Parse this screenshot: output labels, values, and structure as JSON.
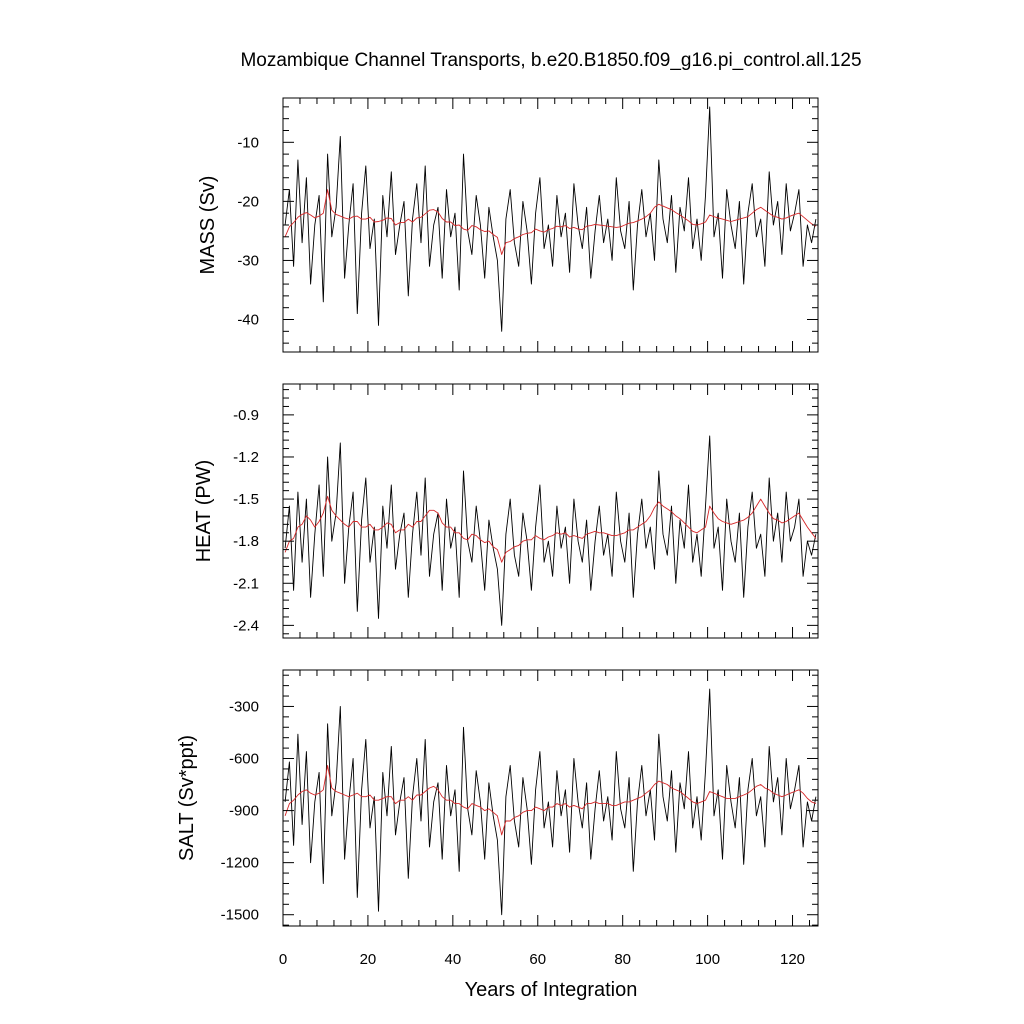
{
  "title": "Mozambique Channel Transports, b.e20.B1850.f09_g16.pi_control.all.125",
  "xlabel": "Years of Integration",
  "x_ticks": [
    "0",
    "20",
    "40",
    "60",
    "80",
    "100",
    "120"
  ],
  "colors": {
    "raw": "#000000",
    "smooth": "#d62728",
    "axes": "#000000"
  },
  "chart_data": [
    {
      "type": "line",
      "ylabel": "MASS (Sv)",
      "xlim": [
        0,
        126
      ],
      "ylim": [
        -45.5,
        -2.5
      ],
      "y_ticks": [
        -10,
        -20,
        -30,
        -40
      ],
      "y_tick_labels": [
        "-10",
        "-20",
        "-30",
        "-40"
      ],
      "series": [
        {
          "values": [
            -24,
            -18,
            -31,
            -13,
            -27,
            -16,
            -34,
            -24,
            -19,
            -37,
            -12,
            -26,
            -21,
            -9,
            -33,
            -24,
            -17,
            -39,
            -22,
            -14,
            -28,
            -23,
            -41,
            -19,
            -26,
            -15,
            -29,
            -24,
            -20,
            -36,
            -23,
            -17,
            -27,
            -14,
            -31,
            -24,
            -21,
            -33,
            -18,
            -26,
            -22,
            -35,
            -12,
            -25,
            -29,
            -19,
            -24,
            -33,
            -21,
            -26,
            -30,
            -42,
            -23,
            -18,
            -27,
            -31,
            -20,
            -25,
            -34,
            -22,
            -16,
            -28,
            -24,
            -31,
            -19,
            -26,
            -22,
            -32,
            -17,
            -24,
            -28,
            -21,
            -33,
            -25,
            -19,
            -27,
            -23,
            -30,
            -16,
            -25,
            -28,
            -20,
            -35,
            -24,
            -18,
            -26,
            -22,
            -30,
            -13,
            -23,
            -27,
            -19,
            -32,
            -21,
            -25,
            -16,
            -28,
            -23,
            -30,
            -19,
            -4,
            -26,
            -22,
            -33,
            -18,
            -24,
            -28,
            -20,
            -34,
            -22,
            -17,
            -26,
            -23,
            -31,
            -15,
            -24,
            -20,
            -29,
            -17,
            -25,
            -22,
            -18,
            -31,
            -24,
            -27,
            -23
          ]
        },
        {
          "values": [
            -26.0,
            -24.3,
            -23.6,
            -22.7,
            -22.2,
            -21.9,
            -22.3,
            -22.8,
            -22.5,
            -22.0,
            -18.0,
            -21.5,
            -22.2,
            -22.5,
            -22.8,
            -23.0,
            -22.6,
            -22.5,
            -23.0,
            -23.0,
            -22.7,
            -23.5,
            -23.4,
            -23.2,
            -22.8,
            -22.9,
            -24.0,
            -23.6,
            -23.6,
            -23.0,
            -23.5,
            -22.8,
            -22.7,
            -22.1,
            -21.5,
            -21.4,
            -21.8,
            -22.9,
            -23.5,
            -23.5,
            -24.1,
            -24.0,
            -24.7,
            -24.9,
            -24.1,
            -24.3,
            -24.8,
            -25.1,
            -25.0,
            -25.6,
            -26.1,
            -29.0,
            -27.0,
            -26.8,
            -26.3,
            -26.0,
            -25.6,
            -25.4,
            -25.3,
            -24.7,
            -25.0,
            -25.2,
            -24.8,
            -24.6,
            -24.2,
            -24.3,
            -24.1,
            -24.6,
            -24.4,
            -24.7,
            -24.8,
            -24.2,
            -24.1,
            -23.9,
            -24.0,
            -24.1,
            -24.2,
            -24.3,
            -24.4,
            -24.3,
            -24.0,
            -23.7,
            -23.6,
            -23.3,
            -23.0,
            -22.6,
            -22.0,
            -21.0,
            -20.5,
            -20.8,
            -21.1,
            -21.4,
            -21.9,
            -22.3,
            -22.8,
            -23.3,
            -23.9,
            -24.0,
            -23.8,
            -23.5,
            -22.3,
            -22.6,
            -22.8,
            -23.0,
            -23.2,
            -23.4,
            -23.2,
            -23.0,
            -22.8,
            -22.6,
            -22.0,
            -21.4,
            -21.0,
            -21.5,
            -22.0,
            -22.5,
            -22.7,
            -23.0,
            -22.8,
            -22.5,
            -22.2,
            -22.0,
            -22.6,
            -23.2,
            -23.8,
            -24.2
          ]
        }
      ]
    },
    {
      "type": "line",
      "ylabel": "HEAT (PW)",
      "xlim": [
        0,
        126
      ],
      "ylim": [
        -2.49,
        -0.68
      ],
      "y_ticks": [
        -0.9,
        -1.2,
        -1.5,
        -1.8,
        -2.1,
        -2.4
      ],
      "y_tick_labels": [
        "-0.9",
        "-1.2",
        "-1.5",
        "-1.8",
        "-2.1",
        "-2.4"
      ],
      "series": [
        {
          "values": [
            -1.85,
            -1.55,
            -2.15,
            -1.45,
            -1.95,
            -1.5,
            -2.2,
            -1.75,
            -1.4,
            -2.05,
            -1.2,
            -1.8,
            -1.6,
            -1.1,
            -2.1,
            -1.7,
            -1.45,
            -2.3,
            -1.65,
            -1.35,
            -1.95,
            -1.7,
            -2.35,
            -1.55,
            -1.85,
            -1.4,
            -2.0,
            -1.75,
            -1.6,
            -2.2,
            -1.75,
            -1.45,
            -1.9,
            -1.35,
            -2.05,
            -1.75,
            -1.6,
            -2.15,
            -1.5,
            -1.85,
            -1.7,
            -2.2,
            -1.3,
            -1.8,
            -1.95,
            -1.55,
            -1.8,
            -2.15,
            -1.65,
            -1.85,
            -2.0,
            -2.4,
            -1.75,
            -1.5,
            -1.9,
            -2.05,
            -1.6,
            -1.8,
            -2.15,
            -1.7,
            -1.4,
            -1.95,
            -1.8,
            -2.05,
            -1.55,
            -1.85,
            -1.7,
            -2.1,
            -1.5,
            -1.8,
            -1.95,
            -1.65,
            -2.15,
            -1.8,
            -1.55,
            -1.9,
            -1.75,
            -2.05,
            -1.45,
            -1.8,
            -1.95,
            -1.6,
            -2.2,
            -1.75,
            -1.5,
            -1.85,
            -1.7,
            -2.0,
            -1.3,
            -1.75,
            -1.9,
            -1.55,
            -2.1,
            -1.65,
            -1.85,
            -1.4,
            -1.95,
            -1.75,
            -2.05,
            -1.55,
            -1.05,
            -1.85,
            -1.7,
            -2.15,
            -1.5,
            -1.8,
            -1.95,
            -1.6,
            -2.2,
            -1.7,
            -1.45,
            -1.85,
            -1.75,
            -2.05,
            -1.35,
            -1.8,
            -1.6,
            -1.95,
            -1.45,
            -1.8,
            -1.7,
            -1.5,
            -2.05,
            -1.8,
            -1.9,
            -1.75
          ]
        },
        {
          "values": [
            -1.88,
            -1.8,
            -1.78,
            -1.7,
            -1.68,
            -1.62,
            -1.65,
            -1.7,
            -1.66,
            -1.6,
            -1.48,
            -1.58,
            -1.62,
            -1.65,
            -1.68,
            -1.7,
            -1.66,
            -1.66,
            -1.7,
            -1.7,
            -1.68,
            -1.72,
            -1.72,
            -1.7,
            -1.67,
            -1.68,
            -1.74,
            -1.72,
            -1.72,
            -1.68,
            -1.7,
            -1.66,
            -1.66,
            -1.62,
            -1.58,
            -1.58,
            -1.6,
            -1.67,
            -1.7,
            -1.7,
            -1.74,
            -1.74,
            -1.78,
            -1.79,
            -1.75,
            -1.76,
            -1.79,
            -1.81,
            -1.8,
            -1.84,
            -1.86,
            -1.95,
            -1.88,
            -1.86,
            -1.84,
            -1.83,
            -1.8,
            -1.79,
            -1.79,
            -1.76,
            -1.78,
            -1.79,
            -1.77,
            -1.76,
            -1.74,
            -1.75,
            -1.74,
            -1.77,
            -1.76,
            -1.77,
            -1.78,
            -1.75,
            -1.74,
            -1.73,
            -1.74,
            -1.74,
            -1.75,
            -1.76,
            -1.76,
            -1.75,
            -1.74,
            -1.72,
            -1.72,
            -1.7,
            -1.68,
            -1.66,
            -1.62,
            -1.56,
            -1.52,
            -1.55,
            -1.57,
            -1.59,
            -1.62,
            -1.64,
            -1.67,
            -1.7,
            -1.73,
            -1.74,
            -1.72,
            -1.7,
            -1.55,
            -1.6,
            -1.64,
            -1.66,
            -1.67,
            -1.68,
            -1.67,
            -1.66,
            -1.65,
            -1.63,
            -1.6,
            -1.55,
            -1.5,
            -1.55,
            -1.6,
            -1.64,
            -1.65,
            -1.67,
            -1.66,
            -1.64,
            -1.62,
            -1.6,
            -1.65,
            -1.7,
            -1.74,
            -1.78
          ]
        }
      ]
    },
    {
      "type": "line",
      "ylabel": "SALT (Sv*ppt)",
      "xlim": [
        0,
        126
      ],
      "ylim": [
        -1565,
        -90
      ],
      "y_ticks": [
        -300,
        -600,
        -900,
        -1200,
        -1500
      ],
      "y_tick_labels": [
        "-300",
        "-600",
        "-900",
        "-1200",
        "-1500"
      ],
      "series": [
        {
          "values": [
            -850,
            -620,
            -1100,
            -460,
            -980,
            -560,
            -1200,
            -850,
            -680,
            -1320,
            -400,
            -930,
            -740,
            -300,
            -1180,
            -850,
            -600,
            -1400,
            -780,
            -490,
            -1000,
            -820,
            -1480,
            -680,
            -930,
            -530,
            -1040,
            -850,
            -710,
            -1290,
            -820,
            -600,
            -960,
            -490,
            -1110,
            -850,
            -740,
            -1180,
            -640,
            -930,
            -780,
            -1250,
            -420,
            -890,
            -1040,
            -670,
            -850,
            -1180,
            -740,
            -930,
            -1070,
            -1500,
            -820,
            -640,
            -960,
            -1110,
            -710,
            -890,
            -1210,
            -780,
            -560,
            -1000,
            -850,
            -1110,
            -670,
            -930,
            -780,
            -1140,
            -600,
            -850,
            -1000,
            -740,
            -1180,
            -890,
            -670,
            -960,
            -820,
            -1070,
            -560,
            -890,
            -1000,
            -710,
            -1250,
            -850,
            -640,
            -930,
            -780,
            -1070,
            -460,
            -820,
            -960,
            -670,
            -1140,
            -740,
            -890,
            -560,
            -1000,
            -820,
            -1070,
            -670,
            -200,
            -930,
            -780,
            -1180,
            -640,
            -850,
            -1000,
            -710,
            -1210,
            -780,
            -600,
            -930,
            -820,
            -1110,
            -530,
            -850,
            -710,
            -1040,
            -600,
            -890,
            -780,
            -640,
            -1110,
            -850,
            -960,
            -820
          ]
        },
        {
          "values": [
            -930,
            -860,
            -840,
            -810,
            -790,
            -780,
            -800,
            -810,
            -800,
            -780,
            -640,
            -770,
            -790,
            -800,
            -810,
            -820,
            -810,
            -800,
            -820,
            -820,
            -810,
            -840,
            -840,
            -830,
            -820,
            -820,
            -860,
            -840,
            -840,
            -820,
            -840,
            -810,
            -810,
            -790,
            -770,
            -760,
            -780,
            -820,
            -840,
            -840,
            -860,
            -860,
            -880,
            -890,
            -860,
            -870,
            -880,
            -900,
            -890,
            -910,
            -930,
            -1040,
            -960,
            -960,
            -940,
            -930,
            -910,
            -900,
            -900,
            -880,
            -890,
            -900,
            -880,
            -880,
            -860,
            -870,
            -860,
            -880,
            -870,
            -880,
            -890,
            -860,
            -860,
            -850,
            -860,
            -860,
            -860,
            -870,
            -870,
            -860,
            -850,
            -850,
            -840,
            -830,
            -820,
            -800,
            -780,
            -750,
            -730,
            -740,
            -750,
            -770,
            -780,
            -790,
            -810,
            -830,
            -850,
            -860,
            -850,
            -840,
            -790,
            -800,
            -810,
            -820,
            -830,
            -830,
            -830,
            -820,
            -810,
            -800,
            -780,
            -760,
            -750,
            -770,
            -780,
            -800,
            -810,
            -820,
            -810,
            -800,
            -790,
            -780,
            -800,
            -830,
            -850,
            -860
          ]
        }
      ]
    }
  ]
}
